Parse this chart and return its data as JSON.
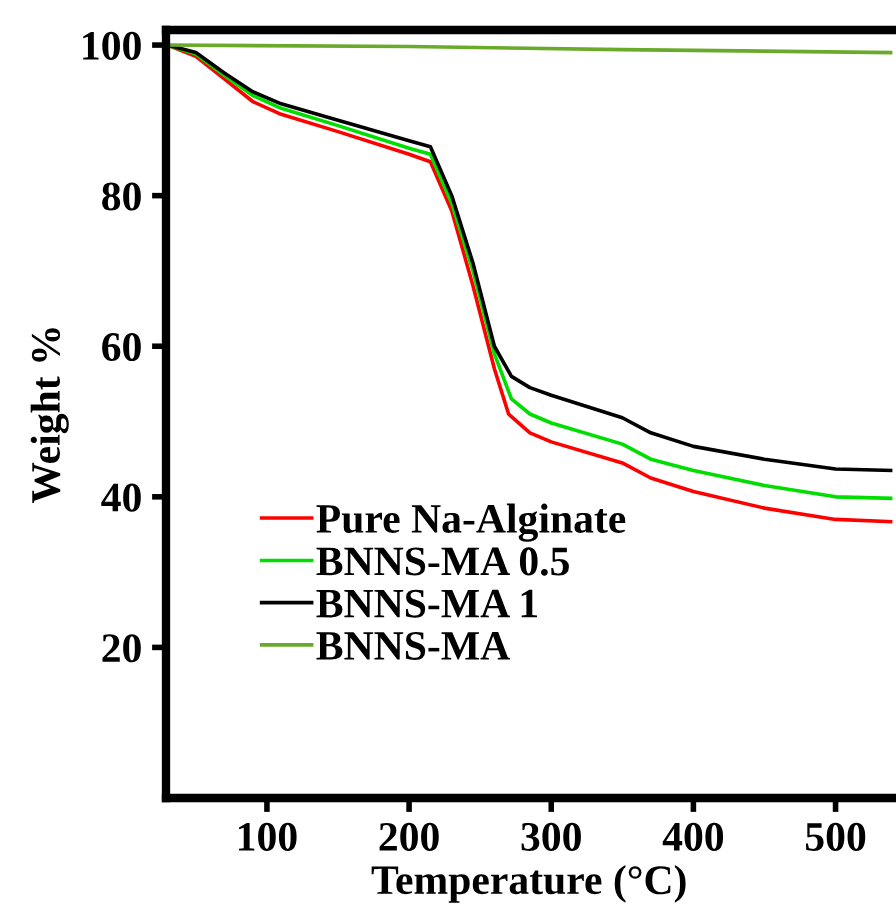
{
  "chart_data": {
    "type": "line",
    "xlabel": "Temperature (°C)",
    "ylabel": "Weight %",
    "xlim": [
      29,
      540
    ],
    "ylim": [
      0,
      102
    ],
    "xticks": [
      100,
      200,
      300,
      400,
      500
    ],
    "yticks": [
      20,
      40,
      60,
      80,
      100
    ],
    "legend": "bottom left",
    "grid": false,
    "series": [
      {
        "name": "Pure Na-Alginate",
        "color": "#ff0000",
        "x": [
          30,
          50,
          70,
          90,
          110,
          150,
          200,
          215,
          230,
          245,
          260,
          270,
          285,
          300,
          350,
          370,
          400,
          450,
          500,
          540
        ],
        "values": [
          100,
          98.5,
          95.5,
          92.5,
          90.8,
          88.5,
          85.5,
          84.5,
          78,
          68,
          57,
          51,
          48.5,
          47.3,
          44.5,
          42.5,
          40.7,
          38.5,
          37,
          36.7
        ]
      },
      {
        "name": "BNNS-MA 0.5",
        "color": "#00dd00",
        "x": [
          30,
          50,
          70,
          90,
          110,
          150,
          200,
          215,
          230,
          245,
          260,
          272,
          285,
          300,
          350,
          370,
          400,
          450,
          500,
          540
        ],
        "values": [
          100,
          98.8,
          96,
          93.3,
          91.6,
          89.3,
          86.3,
          85.5,
          79,
          70,
          59,
          53,
          51,
          49.8,
          47,
          45,
          43.5,
          41.5,
          40,
          39.8
        ]
      },
      {
        "name": "BNNS-MA 1",
        "color": "#000000",
        "x": [
          30,
          50,
          70,
          90,
          110,
          150,
          200,
          215,
          230,
          245,
          260,
          272,
          285,
          300,
          350,
          370,
          400,
          450,
          500,
          540
        ],
        "values": [
          100,
          99,
          96.3,
          93.8,
          92.2,
          90,
          87.3,
          86.5,
          80,
          71,
          60,
          56,
          54.5,
          53.5,
          50.5,
          48.5,
          46.7,
          45,
          43.7,
          43.5
        ]
      },
      {
        "name": "BNNS-MA",
        "color": "#6aaa2a",
        "x": [
          30,
          200,
          350,
          540
        ],
        "values": [
          100,
          99.8,
          99.4,
          99.0
        ]
      }
    ]
  }
}
